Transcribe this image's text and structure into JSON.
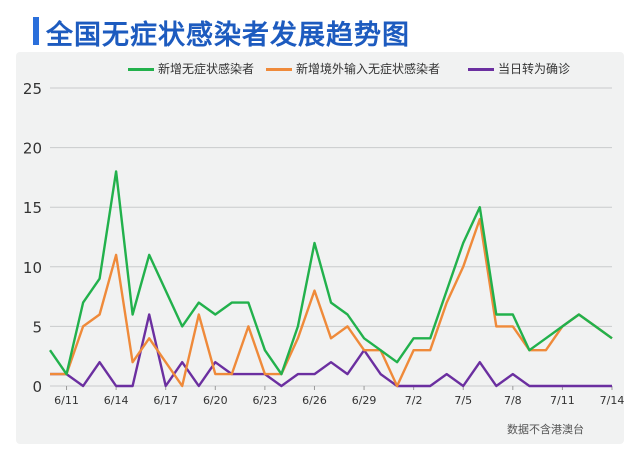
{
  "page": {
    "title": "全国无症状感染者发展趋势图",
    "note": "数据不含港澳台"
  },
  "colors": {
    "green": "#22b14c",
    "orange": "#ef8a3a",
    "purple": "#6b2fa0",
    "title": "#1d5bbf"
  },
  "chart_data": {
    "type": "line",
    "title": "全国无症状感染者发展趋势图",
    "ylim": [
      0,
      25
    ],
    "yticks": [
      0,
      5,
      10,
      15,
      20,
      25
    ],
    "x": [
      "6/10",
      "6/11",
      "6/12",
      "6/13",
      "6/14",
      "6/15",
      "6/16",
      "6/17",
      "6/18",
      "6/19",
      "6/20",
      "6/21",
      "6/22",
      "6/23",
      "6/24",
      "6/25",
      "6/26",
      "6/27",
      "6/28",
      "6/29",
      "6/30",
      "7/1",
      "7/2",
      "7/3",
      "7/4",
      "7/5",
      "7/6",
      "7/7",
      "7/8",
      "7/9",
      "7/10",
      "7/11",
      "7/12",
      "7/13",
      "7/14"
    ],
    "xticks": [
      "6/11",
      "6/14",
      "6/17",
      "6/20",
      "6/23",
      "6/26",
      "6/29",
      "7/2",
      "7/5",
      "7/8",
      "7/11",
      "7/14"
    ],
    "grid": "horizontal",
    "legend": "top-right",
    "series": [
      {
        "name": "新增无症状感染者",
        "color": "#22b14c",
        "values": [
          3,
          1,
          7,
          9,
          18,
          6,
          11,
          8,
          5,
          7,
          6,
          7,
          7,
          3,
          1,
          5,
          12,
          7,
          6,
          4,
          3,
          2,
          4,
          4,
          8,
          12,
          15,
          6,
          6,
          3,
          4,
          5,
          6,
          5,
          4
        ]
      },
      {
        "name": "新增境外输入无症状感染者",
        "color": "#ef8a3a",
        "values": [
          1,
          1,
          5,
          6,
          11,
          2,
          4,
          2,
          0,
          6,
          1,
          1,
          5,
          1,
          1,
          4,
          8,
          4,
          5,
          3,
          3,
          0,
          3,
          3,
          7,
          10,
          14,
          5,
          5,
          3,
          3,
          5,
          6,
          5,
          4
        ]
      },
      {
        "name": "当日转为确诊",
        "color": "#6b2fa0",
        "values": [
          1,
          1,
          0,
          2,
          0,
          0,
          6,
          0,
          2,
          0,
          2,
          1,
          1,
          1,
          0,
          1,
          1,
          2,
          1,
          3,
          1,
          0,
          0,
          0,
          1,
          0,
          2,
          0,
          1,
          0,
          0,
          0,
          0,
          0,
          0
        ]
      }
    ]
  }
}
